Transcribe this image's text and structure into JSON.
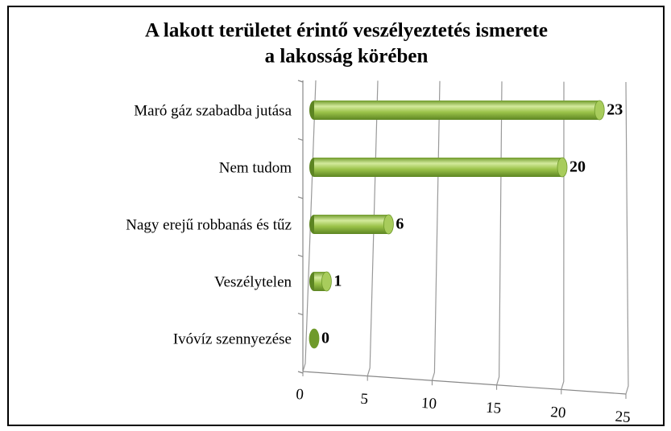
{
  "chart_data": {
    "type": "bar3d",
    "title": [
      "A lakott területet érintő veszélyeztetés ismerete",
      "a lakosság körében"
    ],
    "categories": [
      "Maró gáz szabadba jutása",
      "Nem tudom",
      "Nagy erejű robbanás és tűz",
      "Veszélytelen",
      "Ivóvíz szennyezése"
    ],
    "values": [
      23,
      20,
      6,
      1,
      0
    ],
    "color": "#9bc34a",
    "xlim": [
      0,
      25
    ],
    "xticks": [
      0,
      5,
      10,
      15,
      20,
      25
    ],
    "grid": true
  }
}
